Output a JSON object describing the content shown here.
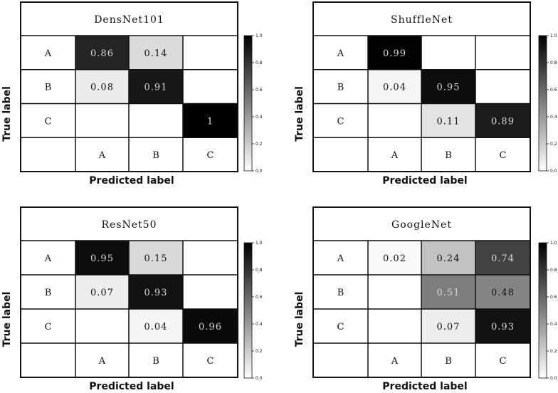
{
  "chart_data": [
    {
      "type": "heatmap",
      "title": "DensNet101",
      "row_labels": [
        "A",
        "B",
        "C"
      ],
      "col_labels": [
        "A",
        "B",
        "C"
      ],
      "values": [
        [
          "0.86",
          "0.14",
          ""
        ],
        [
          "0.08",
          "0.91",
          ""
        ],
        [
          "",
          "",
          "1"
        ]
      ],
      "xlabel": "Predicted label",
      "ylabel": "True label",
      "colorbar": {
        "range": [
          0.0,
          1.0
        ],
        "ticks": [
          "1.0",
          "0.8",
          "0.6",
          "0.4",
          "0.2",
          "0.0"
        ]
      }
    },
    {
      "type": "heatmap",
      "title": "ShuffleNet",
      "row_labels": [
        "A",
        "B",
        "C"
      ],
      "col_labels": [
        "A",
        "B",
        "C"
      ],
      "values": [
        [
          "0.99",
          "",
          ""
        ],
        [
          "0.04",
          "0.95",
          ""
        ],
        [
          "",
          "0.11",
          "0.89"
        ]
      ],
      "xlabel": "Predicted label",
      "ylabel": "True label",
      "colorbar": {
        "range": [
          0.0,
          1.0
        ],
        "ticks": [
          "1.0",
          "0.8",
          "0.6",
          "0.4",
          "0.2",
          "0.0"
        ]
      }
    },
    {
      "type": "heatmap",
      "title": "ResNet50",
      "row_labels": [
        "A",
        "B",
        "C"
      ],
      "col_labels": [
        "A",
        "B",
        "C"
      ],
      "values": [
        [
          "0.95",
          "0.15",
          ""
        ],
        [
          "0.07",
          "0.93",
          ""
        ],
        [
          "",
          "0.04",
          "0.96"
        ]
      ],
      "xlabel": "Predicted label",
      "ylabel": "True label",
      "colorbar": {
        "range": [
          0.0,
          1.0
        ],
        "ticks": [
          "1.0",
          "0.8",
          "0.6",
          "0.4",
          "0.2",
          "0.0"
        ]
      }
    },
    {
      "type": "heatmap",
      "title": "GoogleNet",
      "row_labels": [
        "A",
        "B",
        "C"
      ],
      "col_labels": [
        "A",
        "B",
        "C"
      ],
      "values": [
        [
          "0.02",
          "0.24",
          "0.74"
        ],
        [
          "",
          "0.51",
          "0.48"
        ],
        [
          "",
          "0.07",
          "0.93"
        ]
      ],
      "xlabel": "Predicted label",
      "ylabel": "True label",
      "colorbar": {
        "range": [
          0.0,
          1.0
        ],
        "ticks": [
          "1.0",
          "0.8",
          "0.6",
          "0.4",
          "0.2",
          "0.0"
        ]
      }
    }
  ]
}
